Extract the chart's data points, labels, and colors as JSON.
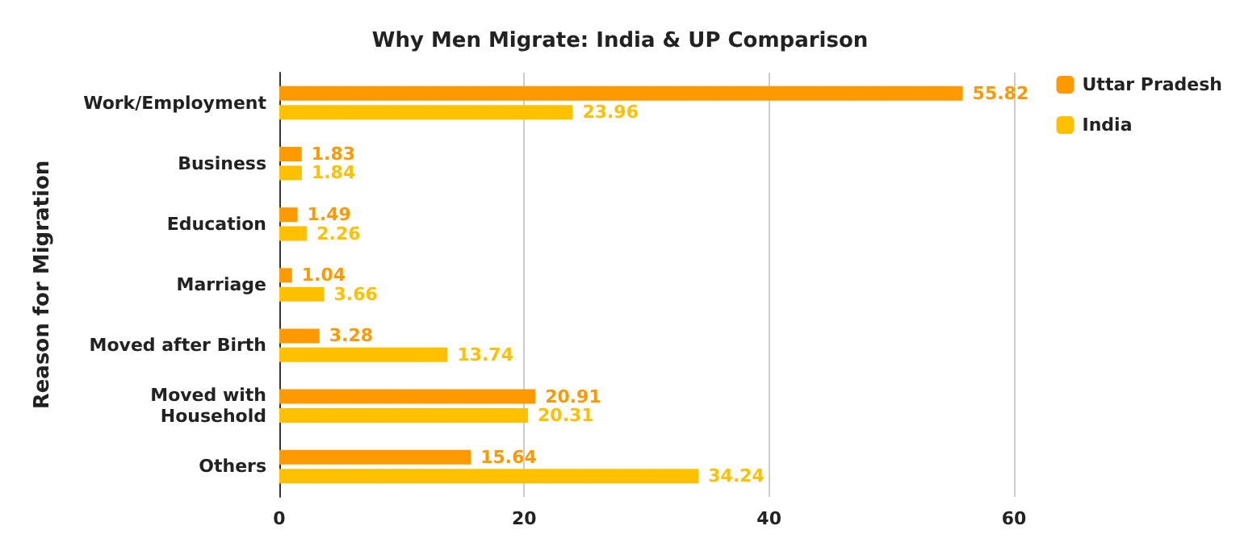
{
  "chart_data": {
    "type": "bar",
    "orientation": "horizontal",
    "title": "Why Men Migrate: India & UP Comparison",
    "ylabel": "Reason for Migration",
    "categories": [
      "Work/Employment",
      "Business",
      "Education",
      "Marriage",
      "Moved after Birth",
      "Moved with Household",
      "Others"
    ],
    "series": [
      {
        "name": "Uttar Pradesh",
        "color": "#ff9900",
        "values": [
          55.82,
          1.83,
          1.49,
          1.04,
          3.28,
          20.91,
          15.64
        ]
      },
      {
        "name": "India",
        "color": "#ffc000",
        "values": [
          23.96,
          1.84,
          2.26,
          3.66,
          13.74,
          20.31,
          34.24
        ]
      }
    ],
    "xlim": [
      0,
      60
    ],
    "xticks": [
      0,
      20,
      40,
      60
    ],
    "grid": "x",
    "legend": "top right",
    "data_labels": true
  }
}
